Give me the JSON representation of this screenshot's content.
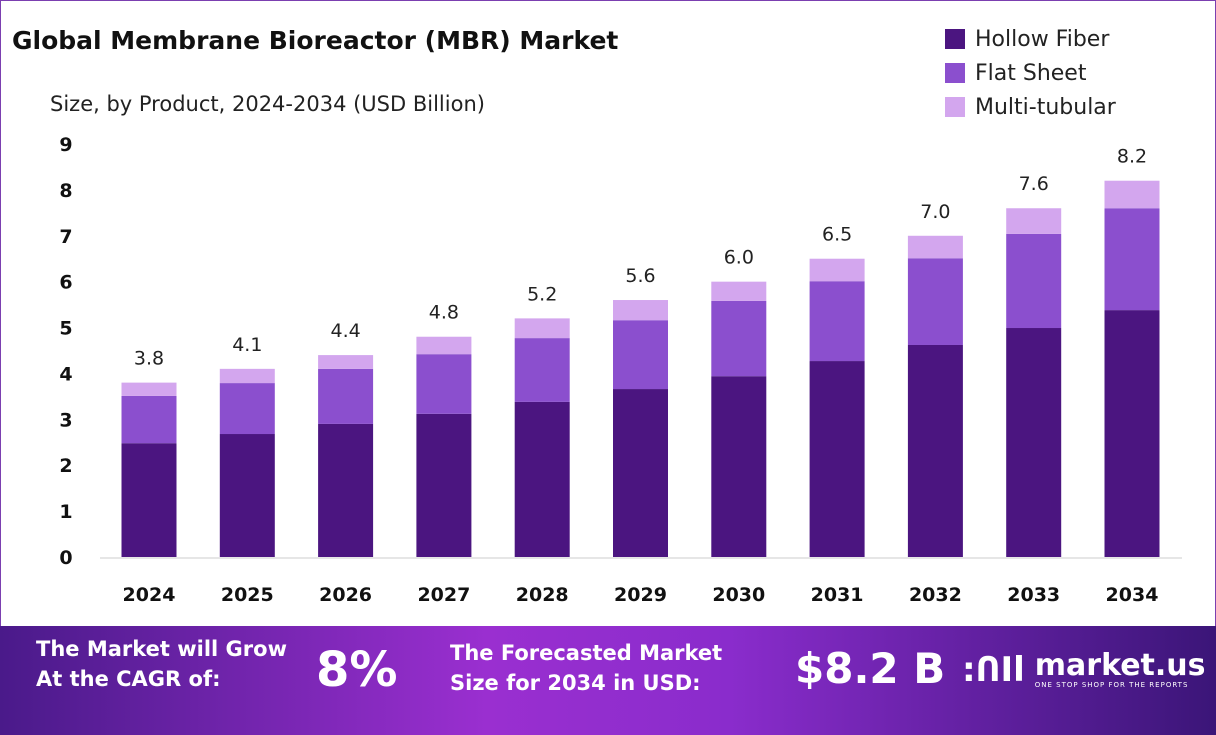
{
  "chart_data": {
    "type": "bar",
    "stacked": true,
    "title": "Global Membrane Bioreactor (MBR) Market",
    "subtitle": "Size, by Product, 2024-2034 (USD Billion)",
    "categories": [
      "2024",
      "2025",
      "2026",
      "2027",
      "2028",
      "2029",
      "2030",
      "2031",
      "2032",
      "2033",
      "2034"
    ],
    "series": [
      {
        "name": "Hollow Fiber",
        "color": "#4b1580",
        "values": [
          2.48,
          2.68,
          2.9,
          3.12,
          3.38,
          3.66,
          3.94,
          4.27,
          4.62,
          4.99,
          5.38
        ]
      },
      {
        "name": "Flat Sheet",
        "color": "#8b4fce",
        "values": [
          1.03,
          1.11,
          1.2,
          1.3,
          1.39,
          1.5,
          1.64,
          1.74,
          1.89,
          2.05,
          2.22
        ]
      },
      {
        "name": "Multi-tubular",
        "color": "#d3a6ee",
        "values": [
          0.29,
          0.31,
          0.3,
          0.38,
          0.43,
          0.44,
          0.42,
          0.49,
          0.49,
          0.56,
          0.6
        ]
      }
    ],
    "totals": [
      "3.8",
      "4.1",
      "4.4",
      "4.8",
      "5.2",
      "5.6",
      "6.0",
      "6.5",
      "7.0",
      "7.6",
      "8.2"
    ],
    "ylim": [
      0,
      9
    ],
    "yticks": [
      "0",
      "1",
      "2",
      "3",
      "4",
      "5",
      "6",
      "7",
      "8",
      "9"
    ],
    "grid": false,
    "legend_position": "top-right"
  },
  "banner": {
    "cagr_label_1": "The Market will Grow",
    "cagr_label_2": "At the CAGR of:",
    "cagr_value": "8%",
    "forecast_label_1": "The Forecasted Market",
    "forecast_label_2": "Size for 2034 in USD:",
    "forecast_value": "$8.2 B",
    "logo_text": "market.us",
    "logo_tagline": "ONE STOP SHOP FOR THE REPORTS"
  }
}
